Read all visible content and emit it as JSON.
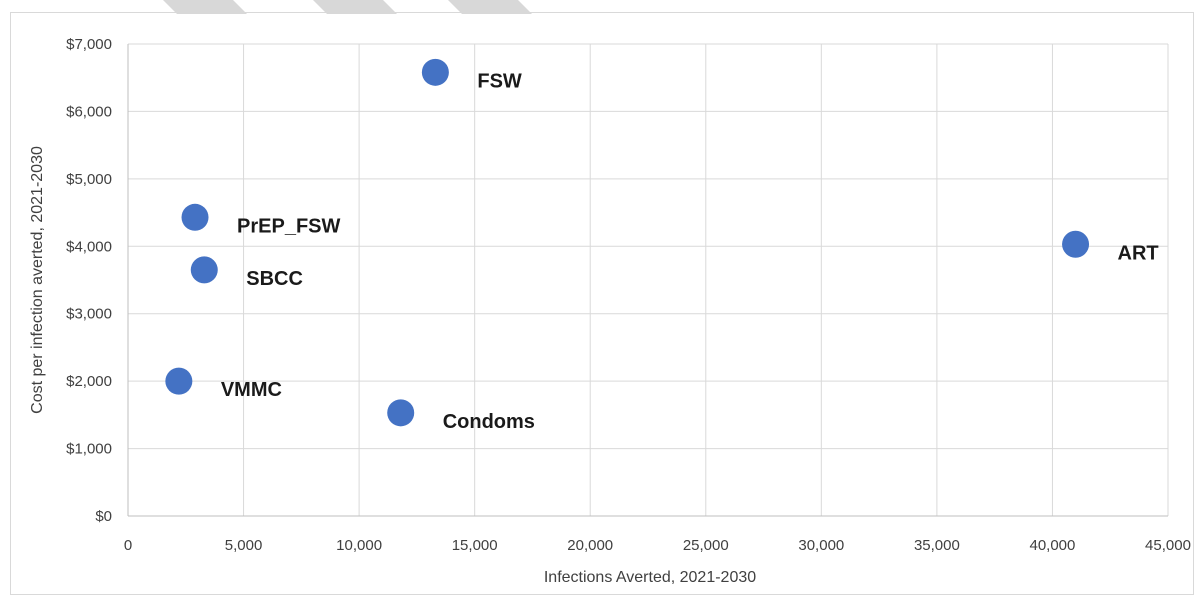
{
  "chart_data": {
    "type": "scatter",
    "title": "",
    "xlabel": "Infections Averted, 2021-2030",
    "ylabel": "Cost per infection averted, 2021-2030",
    "xlim": [
      0,
      45000
    ],
    "ylim": [
      0,
      7000
    ],
    "x_ticks": [
      0,
      5000,
      10000,
      15000,
      20000,
      25000,
      30000,
      35000,
      40000,
      45000
    ],
    "x_tick_labels": [
      "0",
      "5,000",
      "10,000",
      "15,000",
      "20,000",
      "25,000",
      "30,000",
      "35,000",
      "40,000",
      "45,000"
    ],
    "y_ticks": [
      0,
      1000,
      2000,
      3000,
      4000,
      5000,
      6000,
      7000
    ],
    "y_tick_labels": [
      "$0",
      "$1,000",
      "$2,000",
      "$3,000",
      "$4,000",
      "$5,000",
      "$6,000",
      "$7,000"
    ],
    "grid": true,
    "legend": "none",
    "marker_color": "#4472c4",
    "points": [
      {
        "label": "FSW",
        "x": 13300,
        "y": 6580
      },
      {
        "label": "PrEP_FSW",
        "x": 2900,
        "y": 4430
      },
      {
        "label": "SBCC",
        "x": 3300,
        "y": 3650
      },
      {
        "label": "ART",
        "x": 41000,
        "y": 4030
      },
      {
        "label": "VMMC",
        "x": 2200,
        "y": 2000
      },
      {
        "label": "Condoms",
        "x": 11800,
        "y": 1530
      }
    ]
  }
}
